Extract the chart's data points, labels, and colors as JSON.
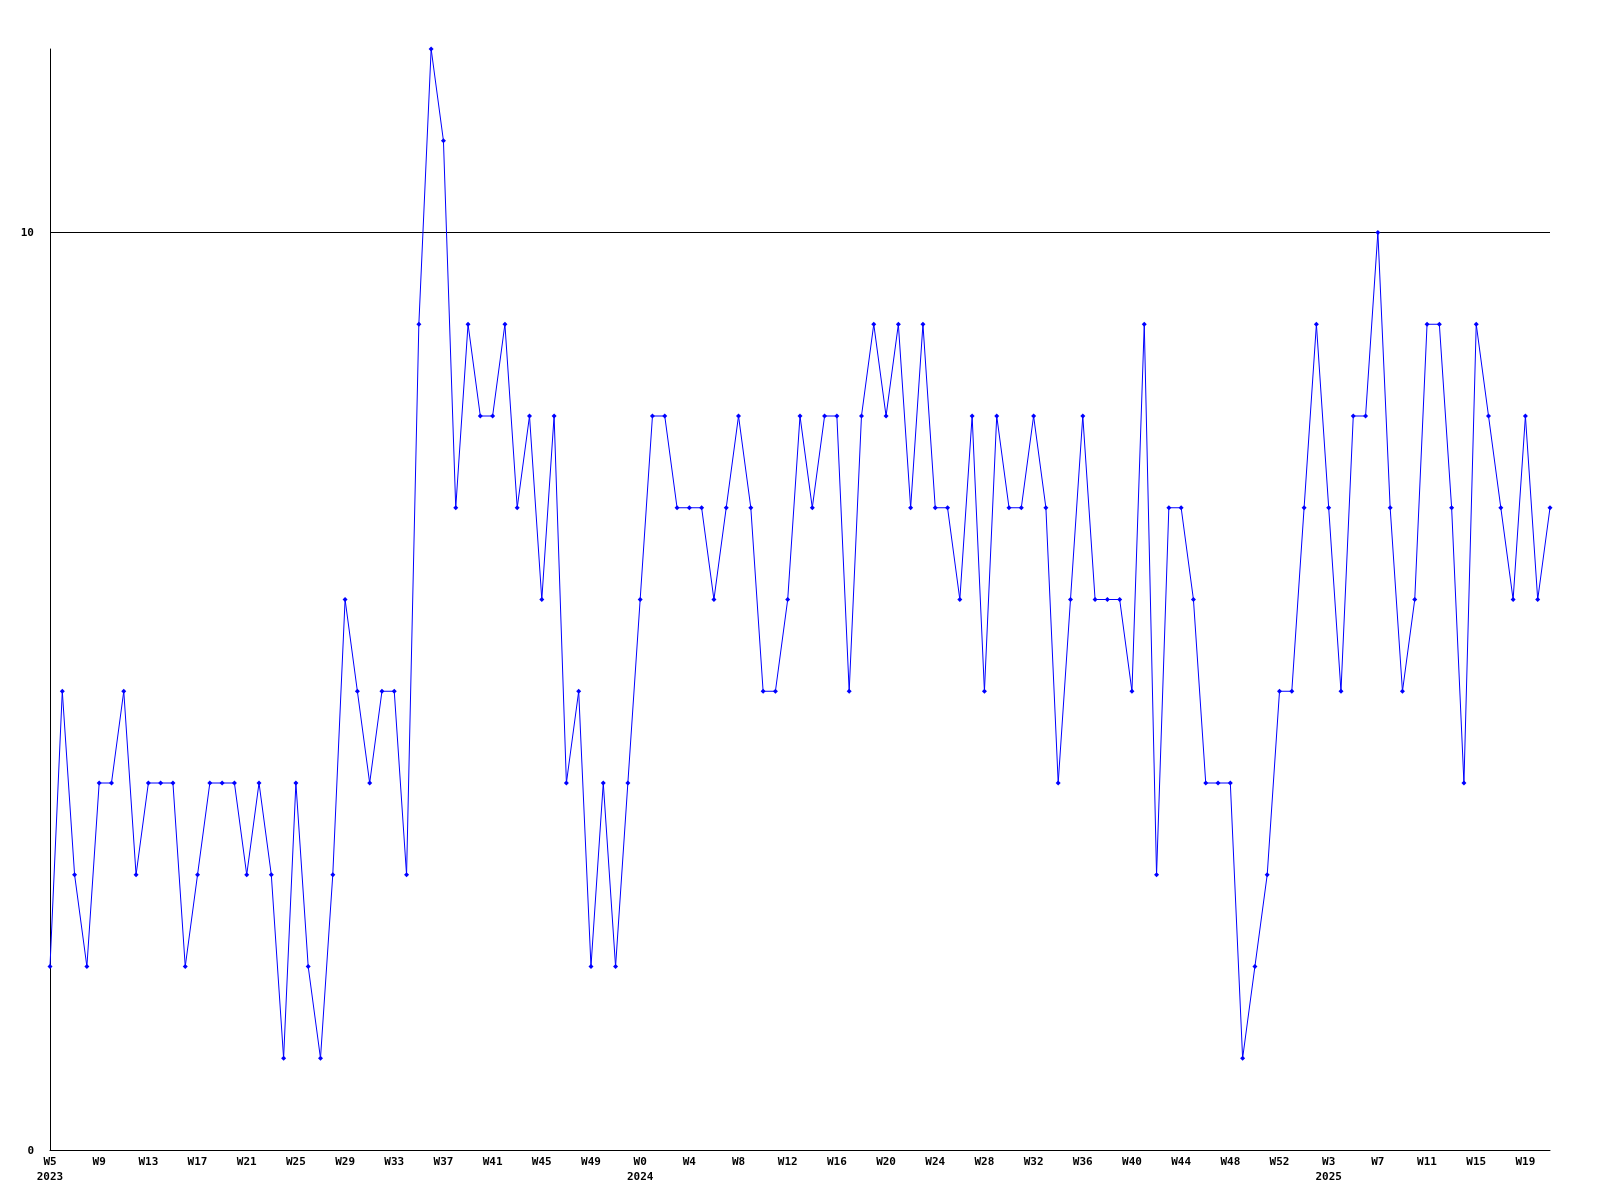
{
  "chart_data": {
    "type": "line",
    "categories": [
      "W5\n2023",
      null,
      null,
      null,
      "W9",
      null,
      null,
      null,
      "W13",
      null,
      null,
      null,
      "W17",
      null,
      null,
      null,
      "W21",
      null,
      null,
      null,
      "W25",
      null,
      null,
      null,
      "W29",
      null,
      null,
      null,
      "W33",
      null,
      null,
      null,
      "W37",
      null,
      null,
      null,
      "W41",
      null,
      null,
      null,
      "W45",
      null,
      null,
      null,
      "W49",
      null,
      null,
      null,
      "W0\n2024",
      null,
      null,
      null,
      "W4",
      null,
      null,
      null,
      "W8",
      null,
      null,
      null,
      "W12",
      null,
      null,
      null,
      "W16",
      null,
      null,
      null,
      "W20",
      null,
      null,
      null,
      "W24",
      null,
      null,
      null,
      "W28",
      null,
      null,
      null,
      "W32",
      null,
      null,
      null,
      "W36",
      null,
      null,
      null,
      "W40",
      null,
      null,
      null,
      "W44",
      null,
      null,
      null,
      "W48",
      null,
      null,
      null,
      "W52",
      null,
      null,
      null,
      "W3\n2025",
      null,
      null,
      null,
      "W7",
      null,
      null,
      null,
      "W11",
      null,
      null,
      null,
      "W15",
      null,
      null,
      null,
      "W19",
      null,
      null
    ],
    "series": [
      {
        "color": "#0000ff",
        "values": [
          2,
          5,
          3,
          2,
          4,
          4,
          5,
          3,
          4,
          4,
          4,
          2,
          3,
          4,
          4,
          4,
          3,
          4,
          3,
          1,
          4,
          2,
          1,
          3,
          6,
          5,
          4,
          5,
          5,
          3,
          9,
          12,
          11,
          7,
          9,
          8,
          8,
          9,
          7,
          8,
          6,
          8,
          4,
          5,
          2,
          4,
          2,
          4,
          6,
          8,
          8,
          7,
          7,
          7,
          6,
          7,
          8,
          7,
          5,
          5,
          6,
          8,
          7,
          8,
          8,
          5,
          8,
          9,
          8,
          9,
          7,
          9,
          7,
          7,
          6,
          8,
          5,
          8,
          7,
          7,
          8,
          7,
          4,
          6,
          8,
          6,
          6,
          6,
          5,
          9,
          3,
          7,
          7,
          6,
          4,
          4,
          4,
          1,
          2,
          3,
          5,
          5,
          7,
          9,
          7,
          5,
          8,
          8,
          10,
          7,
          5,
          6,
          9,
          9,
          7,
          4,
          9,
          8,
          7,
          6,
          8,
          6,
          7
        ]
      }
    ],
    "ylim": [
      0,
      12
    ],
    "yticks": [
      0,
      10
    ],
    "grid": "y",
    "marker": "diamond",
    "line_style": "solid"
  }
}
